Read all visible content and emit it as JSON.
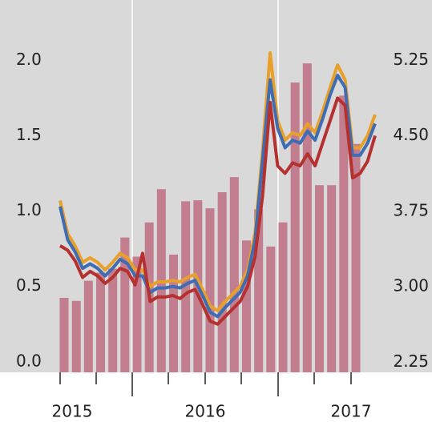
{
  "chart_data": {
    "type": "combo",
    "ylim": [
      -0.07,
      2.4
    ],
    "yticks": [
      {
        "value": 2,
        "label": "2.0"
      },
      1.5,
      {
        "value": 1,
        "label": "1.0"
      },
      0.5,
      {
        "value": 0,
        "label": "0.0"
      }
    ],
    "y2lim": [
      2.15,
      5.85
    ],
    "y2ticks": [
      5.25,
      {
        "value": 4.5,
        "label": "4.50"
      },
      3.75,
      {
        "value": 3,
        "label": "3.00"
      },
      2.25
    ],
    "x_labels": [
      "2015",
      "2016",
      "2017"
    ],
    "bars": {
      "axis": "y2",
      "color": "#c27d8e",
      "values": [
        2.89,
        2.86,
        3.06,
        3.14,
        3.18,
        3.49,
        3.3,
        3.64,
        3.97,
        3.32,
        3.85,
        3.86,
        3.78,
        3.94,
        4.09,
        3.46,
        3.77,
        3.4,
        3.64,
        5.03,
        5.22,
        4.01,
        4.01,
        4.9,
        4.42
      ]
    },
    "series": [
      {
        "color": "#e8a02a",
        "values": [
          1.07,
          0.85,
          0.77,
          0.66,
          0.69,
          0.66,
          0.61,
          0.66,
          0.72,
          0.69,
          0.61,
          0.61,
          0.5,
          0.53,
          0.53,
          0.54,
          0.53,
          0.56,
          0.58,
          0.48,
          0.37,
          0.34,
          0.4,
          0.45,
          0.5,
          0.61,
          0.86,
          1.4,
          2.05,
          1.6,
          1.47,
          1.52,
          1.5,
          1.58,
          1.52,
          1.66,
          1.82,
          1.97,
          1.87,
          1.42,
          1.42,
          1.5,
          1.64
        ]
      },
      {
        "color": "#3f6db3",
        "values": [
          1.03,
          0.81,
          0.73,
          0.62,
          0.65,
          0.62,
          0.57,
          0.62,
          0.68,
          0.65,
          0.57,
          0.57,
          0.46,
          0.49,
          0.49,
          0.5,
          0.49,
          0.52,
          0.54,
          0.44,
          0.33,
          0.3,
          0.36,
          0.41,
          0.46,
          0.57,
          0.81,
          1.34,
          1.87,
          1.55,
          1.42,
          1.47,
          1.45,
          1.53,
          1.47,
          1.61,
          1.77,
          1.9,
          1.82,
          1.37,
          1.37,
          1.45,
          1.58
        ]
      },
      {
        "color": "#b5312f",
        "values": [
          0.77,
          0.74,
          0.67,
          0.56,
          0.6,
          0.57,
          0.52,
          0.56,
          0.62,
          0.6,
          0.51,
          0.72,
          0.4,
          0.43,
          0.43,
          0.44,
          0.42,
          0.46,
          0.48,
          0.38,
          0.27,
          0.25,
          0.3,
          0.35,
          0.4,
          0.5,
          0.7,
          1.1,
          1.72,
          1.3,
          1.25,
          1.32,
          1.3,
          1.38,
          1.3,
          1.45,
          1.6,
          1.75,
          1.7,
          1.22,
          1.25,
          1.33,
          1.5
        ]
      }
    ]
  }
}
